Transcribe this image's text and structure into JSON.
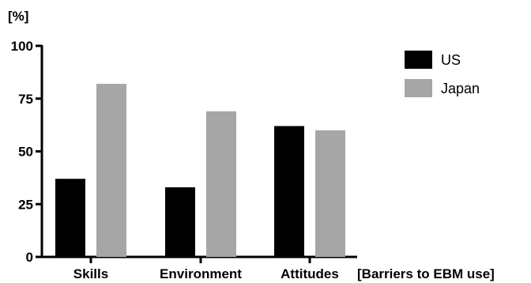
{
  "chart_data": {
    "type": "bar",
    "categories": [
      "Skills",
      "Environment",
      "Attitudes"
    ],
    "series": [
      {
        "name": "US",
        "values": [
          37,
          33,
          62
        ],
        "color": "#000000"
      },
      {
        "name": "Japan",
        "values": [
          82,
          69,
          60
        ],
        "color": "#a6a6a6"
      }
    ],
    "ylabel": "[%]",
    "xlabel": "[Barriers to EBM use]",
    "ylim": [
      0,
      100
    ],
    "yticks": [
      0,
      25,
      50,
      75,
      100
    ],
    "legend_position": "top-right",
    "grid": false
  }
}
